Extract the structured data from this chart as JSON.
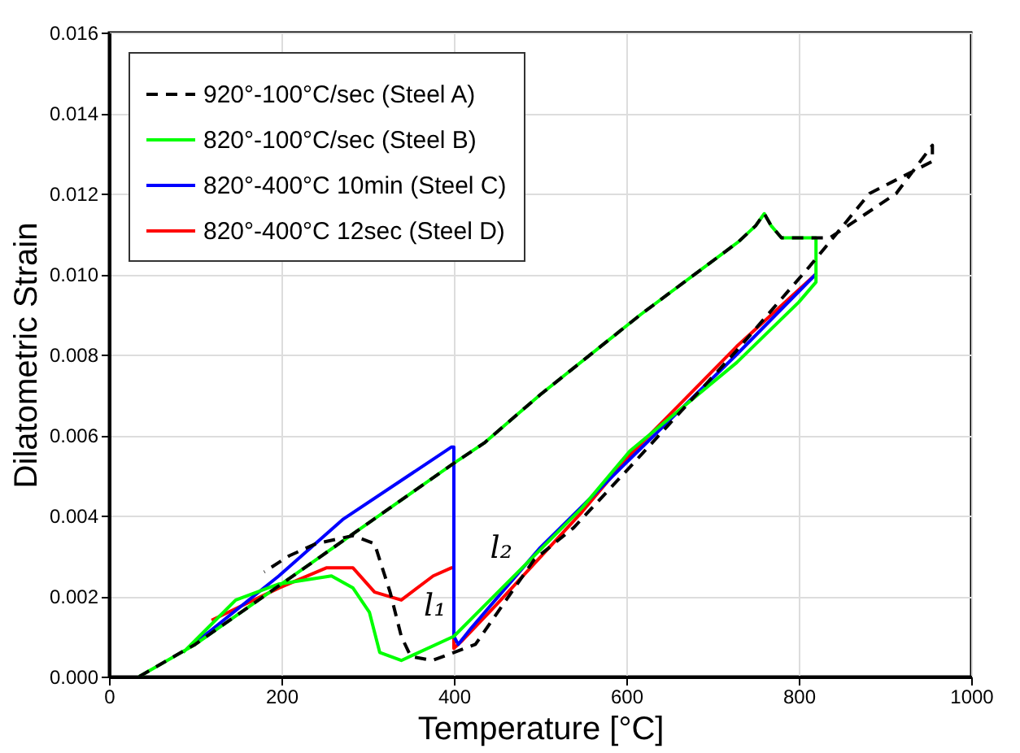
{
  "chart_data": {
    "type": "line",
    "xlabel": "Temperature [°C]",
    "ylabel": "Dilatometric Strain",
    "xlim": [
      0,
      1000
    ],
    "xticks": [
      0,
      200,
      400,
      600,
      800,
      1000
    ],
    "ylim": [
      0,
      0.016
    ],
    "yticks": [
      {
        "value": 0,
        "label": "0.000"
      },
      {
        "value": 0.002,
        "label": "0.002"
      },
      {
        "value": 0.004,
        "label": "0.004"
      },
      {
        "value": 0.006,
        "label": "0.006"
      },
      {
        "value": 0.008,
        "label": "0.008"
      },
      {
        "value": 0.01,
        "label": "0.010"
      },
      {
        "value": 0.012,
        "label": "0.012"
      },
      {
        "value": 0.014,
        "label": "0.014"
      },
      {
        "value": 0.016,
        "label": "0.016"
      }
    ],
    "grid": true,
    "legend": "top left",
    "marker": "none",
    "series": [
      {
        "name": "920°-100°C/sec (Steel A)",
        "color": "#000000",
        "line_style": "dashed",
        "x": [
          35,
          100,
          200,
          300,
          400,
          435,
          500,
          617,
          730,
          750,
          760,
          768,
          780,
          800,
          820,
          836,
          913,
          955,
          955,
          882,
          813,
          728,
          604,
          539,
          493,
          425,
          375,
          350,
          339,
          326,
          308,
          283,
          240,
          209,
          180
        ],
        "values": [
          0,
          0.0008,
          0.0023,
          0.0038,
          0.0053,
          0.0058,
          0.007,
          0.009,
          0.0108,
          0.0112,
          0.0115,
          0.0112,
          0.0109,
          0.0109,
          0.0109,
          0.0109,
          0.012,
          0.0132,
          0.0128,
          0.012,
          0.0102,
          0.0081,
          0.0052,
          0.0037,
          0.0029,
          0.0008,
          0.0004,
          0.0005,
          0.001,
          0.0021,
          0.0033,
          0.0035,
          0.0033,
          0.003,
          0.0026
        ]
      },
      {
        "name": "820°-100°C/sec (Steel B)",
        "color": "#00ff00",
        "line_style": "solid",
        "x": [
          35,
          100,
          200,
          300,
          400,
          435,
          500,
          617,
          730,
          750,
          760,
          768,
          780,
          800,
          820,
          820,
          800,
          728,
          604,
          549,
          400,
          339,
          314,
          302,
          283,
          258,
          197,
          147,
          86
        ],
        "values": [
          0,
          0.0008,
          0.0023,
          0.0038,
          0.0053,
          0.0058,
          0.007,
          0.009,
          0.0108,
          0.0112,
          0.0115,
          0.0112,
          0.0109,
          0.0109,
          0.0109,
          0.0098,
          0.0093,
          0.0078,
          0.0056,
          0.0042,
          0.001,
          0.0004,
          0.0006,
          0.0016,
          0.0022,
          0.0025,
          0.0023,
          0.0019,
          0.0006
        ]
      },
      {
        "name": "820°-400°C 10min (Steel C)",
        "color": "#0000ff",
        "line_style": "solid",
        "x": [
          820,
          728,
          604,
          500,
          420,
          405,
          400,
          400,
          397,
          271,
          197,
          98
        ],
        "values": [
          0.01,
          0.008,
          0.0054,
          0.0032,
          0.0012,
          0.0008,
          0.001,
          0.0057,
          0.0057,
          0.0039,
          0.0025,
          0.0008
        ]
      },
      {
        "name": "820°-400°C 12sec (Steel D)",
        "color": "#ff0000",
        "line_style": "solid",
        "x": [
          820,
          728,
          604,
          549,
          450,
          410,
          400,
          400,
          397,
          376,
          339,
          308,
          283,
          252,
          197,
          119
        ],
        "values": [
          0.01,
          0.0082,
          0.0055,
          0.0041,
          0.0018,
          0.0009,
          0.0007,
          0.0027,
          0.0027,
          0.0025,
          0.0019,
          0.0021,
          0.0027,
          0.0027,
          0.0022,
          0.0014
        ]
      }
    ],
    "annotations": [
      "l₁",
      "l₂"
    ]
  }
}
